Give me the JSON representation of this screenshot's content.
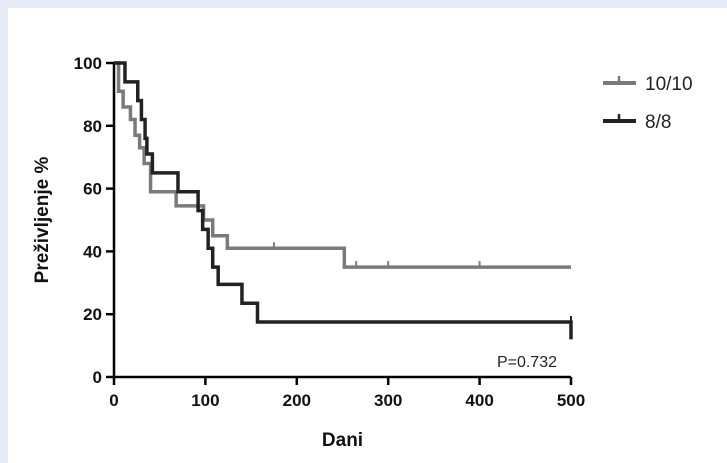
{
  "chart_data": {
    "type": "line",
    "subtype": "kaplan-meier",
    "xlabel": "Dani",
    "ylabel": "Preživljenje %",
    "xlim": [
      0,
      500
    ],
    "ylim": [
      0,
      100
    ],
    "xticks": [
      0,
      100,
      200,
      300,
      400,
      500
    ],
    "yticks": [
      0,
      20,
      40,
      60,
      80,
      100
    ],
    "grid": false,
    "legend_position": "top-right",
    "annotation": "P=0.732",
    "series": [
      {
        "name": "10/10",
        "color": "#7a7a7a",
        "steps": [
          [
            0,
            100
          ],
          [
            5,
            91
          ],
          [
            10,
            86
          ],
          [
            18,
            82
          ],
          [
            23,
            77
          ],
          [
            28,
            73
          ],
          [
            33,
            68
          ],
          [
            40,
            59
          ],
          [
            68,
            54.5
          ],
          [
            98,
            50
          ],
          [
            108,
            45
          ],
          [
            124,
            41
          ],
          [
            252,
            35
          ],
          [
            500,
            35
          ]
        ],
        "censored": [
          [
            175,
            41
          ],
          [
            265,
            35
          ],
          [
            300,
            35
          ],
          [
            400,
            35
          ]
        ]
      },
      {
        "name": "8/8",
        "color": "#222222",
        "steps": [
          [
            0,
            100
          ],
          [
            12,
            94
          ],
          [
            26,
            88
          ],
          [
            30,
            82
          ],
          [
            34,
            76
          ],
          [
            36,
            71
          ],
          [
            42,
            65
          ],
          [
            70,
            59
          ],
          [
            92,
            53
          ],
          [
            97,
            47
          ],
          [
            103,
            41
          ],
          [
            108,
            35
          ],
          [
            114,
            29.5
          ],
          [
            140,
            23.5
          ],
          [
            157,
            17.5
          ],
          [
            500,
            12
          ]
        ],
        "censored": [
          [
            500,
            17.5
          ]
        ]
      }
    ]
  }
}
